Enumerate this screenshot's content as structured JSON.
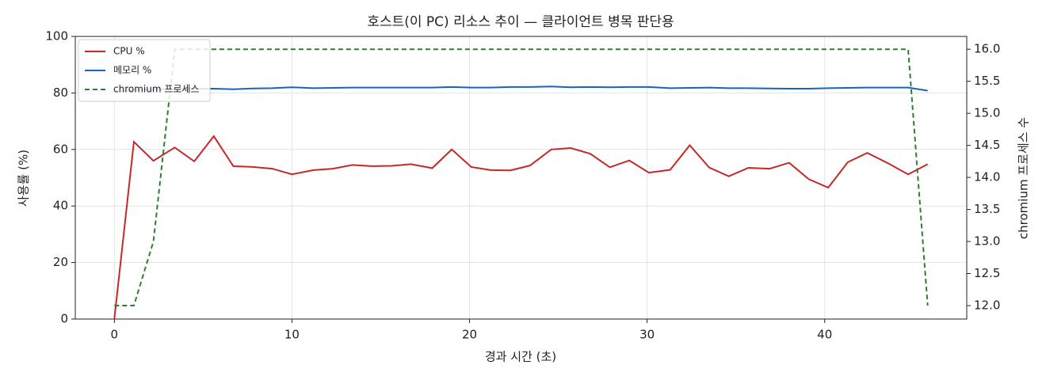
{
  "chart_data": {
    "type": "line",
    "title": "호스트(이 PC) 리소스 추이 — 클라이언트 병목 판단용",
    "xlabel": "경과 시간 (초)",
    "ylabel": "사용률 (%)",
    "y2label": "chromium 프로세스 수",
    "x": [
      0,
      1.1,
      2.2,
      3.4,
      4.5,
      5.6,
      6.7,
      7.8,
      8.9,
      10.0,
      11.2,
      12.3,
      13.4,
      14.5,
      15.6,
      16.7,
      17.9,
      19.0,
      20.1,
      21.2,
      22.3,
      23.4,
      24.6,
      25.7,
      26.8,
      27.9,
      29.0,
      30.1,
      31.3,
      32.4,
      33.5,
      34.6,
      35.7,
      36.9,
      38.0,
      39.1,
      40.2,
      41.3,
      42.4,
      43.6,
      44.7,
      45.8
    ],
    "series": [
      {
        "name": "CPU %",
        "color": "#c62828",
        "linestyle": "solid",
        "values": [
          0,
          62.7,
          56,
          60.7,
          55.8,
          64.7,
          54.1,
          53.8,
          53.2,
          51.2,
          52.7,
          53.2,
          54.5,
          54.1,
          54.2,
          54.8,
          53.4,
          60,
          53.8,
          52.7,
          52.6,
          54.3,
          60,
          60.5,
          58.5,
          53.7,
          56.1,
          51.8,
          52.8,
          61.5,
          53.6,
          50.5,
          53.5,
          53.2,
          55.3,
          49.5,
          46.5,
          55.5,
          58.8,
          55,
          51.2,
          54.8
        ]
      },
      {
        "name": "메모리 %",
        "color": "#1565c0",
        "linestyle": "solid",
        "values": [
          80.5,
          81.0,
          81.2,
          81.4,
          81.5,
          81.5,
          81.3,
          81.6,
          81.7,
          82.0,
          81.7,
          81.8,
          81.9,
          81.9,
          81.9,
          81.9,
          81.9,
          82.1,
          81.9,
          81.9,
          82.1,
          82.1,
          82.3,
          82.0,
          82.1,
          82.0,
          82.1,
          82.1,
          81.7,
          81.8,
          81.9,
          81.7,
          81.7,
          81.6,
          81.5,
          81.5,
          81.7,
          81.8,
          81.9,
          81.9,
          81.9,
          80.8
        ]
      },
      {
        "name": "chromium 프로세스",
        "color": "#2e7d32",
        "linestyle": "dashed",
        "axis": "y2",
        "values": [
          12,
          12,
          13,
          16,
          16,
          16,
          16,
          16,
          16,
          16,
          16,
          16,
          16,
          16,
          16,
          16,
          16,
          16,
          16,
          16,
          16,
          16,
          16,
          16,
          16,
          16,
          16,
          16,
          16,
          16,
          16,
          16,
          16,
          16,
          16,
          16,
          16,
          16,
          16,
          16,
          16,
          12
        ]
      }
    ],
    "xlim": [
      -2.2,
      48.0
    ],
    "xticks": [
      0,
      10,
      20,
      30,
      40
    ],
    "ylim": [
      0,
      100
    ],
    "yticks": [
      0,
      20,
      40,
      60,
      80,
      100
    ],
    "y2lim": [
      11.79,
      16.2
    ],
    "y2ticks": [
      {
        "value": 12,
        "label": "12.0"
      },
      {
        "value": 12.5,
        "label": "12.5"
      },
      {
        "value": 13,
        "label": "13.0"
      },
      {
        "value": 13.5,
        "label": "13.5"
      },
      {
        "value": 14,
        "label": "14.0"
      },
      {
        "value": 14.5,
        "label": "14.5"
      },
      {
        "value": 15,
        "label": "15.0"
      },
      {
        "value": 15.5,
        "label": "15.5"
      },
      {
        "value": 16,
        "label": "16.0"
      }
    ],
    "grid": true,
    "legend": "upper left"
  }
}
